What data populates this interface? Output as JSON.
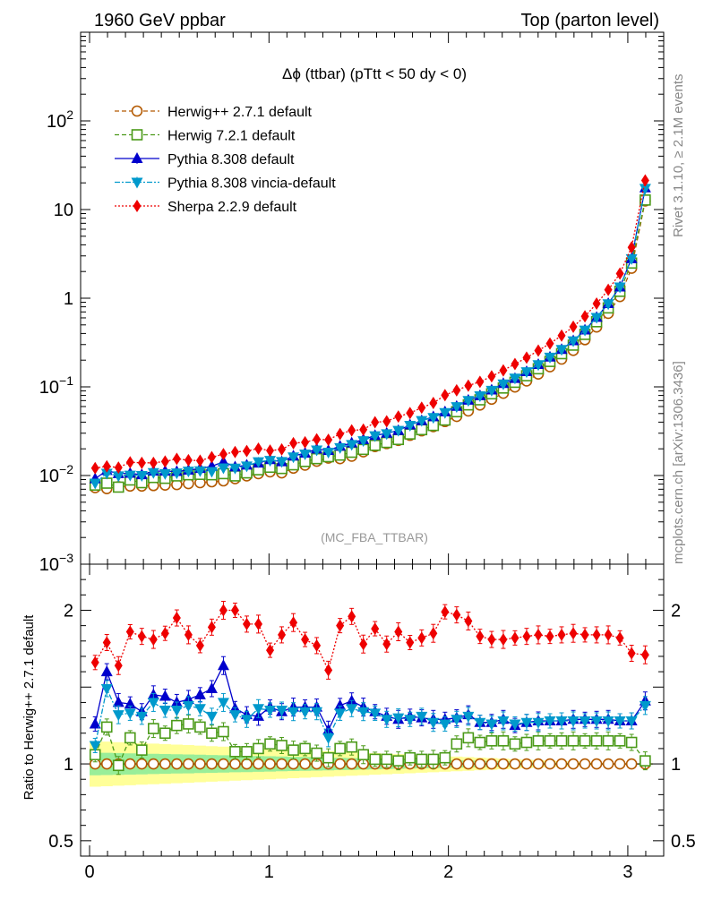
{
  "header": {
    "left": "1960 GeV ppbar",
    "right": "Top (parton level)"
  },
  "side_labels": {
    "top": "Rivet 3.1.10, ≥ 2.1M events",
    "bottom": "mcplots.cern.ch [arXiv:1306.3436]"
  },
  "chart_data": {
    "type": "line",
    "title": "Δϕ (ttbar) (pTtt < 50 dy < 0)",
    "watermark": "(MC_FBA_TTBAR)",
    "x": [
      0.031,
      0.096,
      0.161,
      0.226,
      0.291,
      0.356,
      0.421,
      0.486,
      0.551,
      0.616,
      0.681,
      0.746,
      0.811,
      0.876,
      0.941,
      1.006,
      1.071,
      1.136,
      1.201,
      1.266,
      1.331,
      1.396,
      1.461,
      1.526,
      1.591,
      1.656,
      1.721,
      1.786,
      1.851,
      1.916,
      1.981,
      2.046,
      2.111,
      2.176,
      2.241,
      2.306,
      2.371,
      2.436,
      2.501,
      2.566,
      2.631,
      2.696,
      2.761,
      2.826,
      2.891,
      2.956,
      3.021,
      3.097
    ],
    "xlim": [
      -0.05,
      3.2
    ],
    "main_panel": {
      "yscale": "log",
      "ylim": [
        0.001,
        1000
      ],
      "ytick_labels": [
        "10^-3",
        "10^-2",
        "10^-1",
        "1",
        "10",
        "10^2"
      ],
      "series": [
        {
          "name": "Herwig++ 2.7.1 default",
          "color": "#b35900",
          "marker": "circle-open",
          "dash": "5,3",
          "values": [
            0.0073,
            0.0071,
            0.0075,
            0.0076,
            0.0076,
            0.0077,
            0.0078,
            0.0079,
            0.0081,
            0.0083,
            0.0085,
            0.0087,
            0.0092,
            0.0099,
            0.0105,
            0.011,
            0.0107,
            0.0121,
            0.0131,
            0.0145,
            0.0157,
            0.0155,
            0.0165,
            0.0185,
            0.0212,
            0.0229,
            0.0249,
            0.0284,
            0.0319,
            0.0356,
            0.0406,
            0.0464,
            0.0535,
            0.0624,
            0.0725,
            0.0846,
            0.0995,
            0.1166,
            0.1395,
            0.1686,
            0.2057,
            0.2575,
            0.3402,
            0.4727,
            0.6748,
            1.0426,
            2.1786,
            12.5
          ]
        },
        {
          "name": "Herwig 7.2.1 default",
          "color": "#4b9a19",
          "marker": "square-open",
          "dash": "5,3",
          "values": [
            0.0078,
            0.0082,
            0.0074,
            0.0089,
            0.0083,
            0.0095,
            0.0093,
            0.0099,
            0.0102,
            0.0103,
            0.0102,
            0.0105,
            0.0099,
            0.0107,
            0.0116,
            0.0124,
            0.012,
            0.0132,
            0.0144,
            0.0155,
            0.0163,
            0.017,
            0.0183,
            0.0197,
            0.0219,
            0.0236,
            0.0255,
            0.0294,
            0.0329,
            0.0367,
            0.0422,
            0.0524,
            0.0626,
            0.0714,
            0.0835,
            0.097,
            0.1126,
            0.1335,
            0.1599,
            0.1935,
            0.2367,
            0.2954,
            0.3907,
            0.5424,
            0.7767,
            1.1963,
            2.4918,
            12.8
          ]
        },
        {
          "name": "Pythia 8.308 default",
          "color": "#0000cc",
          "marker": "triangle-up",
          "dash": "",
          "values": [
            0.0092,
            0.0114,
            0.0105,
            0.0106,
            0.0102,
            0.0112,
            0.0112,
            0.0111,
            0.0115,
            0.012,
            0.0127,
            0.0143,
            0.0125,
            0.0131,
            0.0138,
            0.0151,
            0.0143,
            0.0166,
            0.0179,
            0.0199,
            0.0192,
            0.0214,
            0.0233,
            0.0254,
            0.0283,
            0.03,
            0.0322,
            0.0372,
            0.0416,
            0.046,
            0.0523,
            0.0603,
            0.0708,
            0.0794,
            0.0922,
            0.109,
            0.1245,
            0.1486,
            0.1789,
            0.2164,
            0.2642,
            0.3309,
            0.4378,
            0.6083,
            0.8686,
            1.339,
            2.7931,
            17.6
          ]
        },
        {
          "name": "Pythia 8.308 vincia-default",
          "color": "#0099cc",
          "marker": "triangle-down",
          "dash": "6,2,2,2",
          "values": [
            0.0082,
            0.0106,
            0.0099,
            0.0101,
            0.01,
            0.0108,
            0.0105,
            0.0107,
            0.0112,
            0.0113,
            0.0111,
            0.0122,
            0.0121,
            0.0128,
            0.0143,
            0.0148,
            0.0144,
            0.0162,
            0.0175,
            0.0194,
            0.0183,
            0.0206,
            0.0224,
            0.0247,
            0.0281,
            0.0296,
            0.0323,
            0.0368,
            0.0417,
            0.0451,
            0.0513,
            0.0597,
            0.0701,
            0.0792,
            0.0914,
            0.1079,
            0.1256,
            0.1481,
            0.1778,
            0.2162,
            0.2641,
            0.3305,
            0.4364,
            0.6062,
            0.8656,
            1.3371,
            2.7941,
            17.3
          ]
        },
        {
          "name": "Sherpa 2.2.9 default",
          "color": "#ee0000",
          "marker": "diamond",
          "dash": "2,2",
          "values": [
            0.0121,
            0.0127,
            0.0123,
            0.0141,
            0.0139,
            0.0139,
            0.0144,
            0.0154,
            0.0149,
            0.0147,
            0.0161,
            0.0174,
            0.0184,
            0.0189,
            0.0201,
            0.0191,
            0.0197,
            0.0232,
            0.0237,
            0.0256,
            0.0253,
            0.0294,
            0.0323,
            0.0329,
            0.0399,
            0.0408,
            0.0463,
            0.0507,
            0.0582,
            0.0657,
            0.0806,
            0.0915,
            0.1032,
            0.1141,
            0.1313,
            0.1535,
            0.181,
            0.2133,
            0.2568,
            0.3083,
            0.3789,
            0.4762,
            0.6246,
            0.8686,
            1.2426,
            1.8975,
            3.7474,
            21.3
          ]
        }
      ]
    },
    "ratio_panel": {
      "ylabel": "Ratio to Herwig++ 2.7.1 default",
      "ylim": [
        0.4,
        2.3
      ],
      "ytick_labels": [
        "0.5",
        "1",
        "2"
      ],
      "series": [
        {
          "name": "Herwig 7.2.1 default",
          "values": [
            1.06,
            1.24,
            0.99,
            1.17,
            1.09,
            1.23,
            1.2,
            1.25,
            1.26,
            1.24,
            1.2,
            1.21,
            1.08,
            1.08,
            1.1,
            1.13,
            1.12,
            1.09,
            1.1,
            1.07,
            1.04,
            1.1,
            1.11,
            1.06,
            1.03,
            1.03,
            1.02,
            1.04,
            1.03,
            1.03,
            1.04,
            1.13,
            1.17,
            1.14,
            1.15,
            1.15,
            1.13,
            1.14,
            1.15,
            1.15,
            1.15,
            1.15,
            1.15,
            1.15,
            1.15,
            1.15,
            1.14,
            1.02
          ]
        },
        {
          "name": "Pythia 8.308 default",
          "values": [
            1.26,
            1.6,
            1.4,
            1.39,
            1.34,
            1.45,
            1.44,
            1.4,
            1.42,
            1.45,
            1.49,
            1.64,
            1.36,
            1.32,
            1.31,
            1.37,
            1.34,
            1.37,
            1.37,
            1.37,
            1.22,
            1.38,
            1.41,
            1.37,
            1.34,
            1.31,
            1.29,
            1.31,
            1.3,
            1.29,
            1.29,
            1.3,
            1.32,
            1.27,
            1.27,
            1.29,
            1.25,
            1.27,
            1.28,
            1.28,
            1.28,
            1.29,
            1.29,
            1.29,
            1.29,
            1.28,
            1.28,
            1.41
          ]
        },
        {
          "name": "Pythia 8.308 vincia-default",
          "values": [
            1.12,
            1.49,
            1.32,
            1.33,
            1.31,
            1.4,
            1.35,
            1.35,
            1.38,
            1.36,
            1.31,
            1.4,
            1.32,
            1.29,
            1.36,
            1.35,
            1.35,
            1.34,
            1.34,
            1.34,
            1.17,
            1.33,
            1.36,
            1.34,
            1.33,
            1.29,
            1.3,
            1.29,
            1.31,
            1.27,
            1.26,
            1.29,
            1.31,
            1.27,
            1.26,
            1.28,
            1.26,
            1.27,
            1.27,
            1.28,
            1.28,
            1.28,
            1.28,
            1.28,
            1.28,
            1.28,
            1.28,
            1.38
          ]
        },
        {
          "name": "Sherpa 2.2.9 default",
          "values": [
            1.66,
            1.79,
            1.64,
            1.86,
            1.83,
            1.81,
            1.85,
            1.95,
            1.84,
            1.77,
            1.89,
            2.0,
            2.0,
            1.91,
            1.91,
            1.74,
            1.84,
            1.92,
            1.81,
            1.77,
            1.61,
            1.9,
            1.96,
            1.78,
            1.88,
            1.78,
            1.86,
            1.79,
            1.82,
            1.85,
            1.99,
            1.97,
            1.93,
            1.83,
            1.81,
            1.81,
            1.82,
            1.83,
            1.84,
            1.83,
            1.84,
            1.85,
            1.84,
            1.84,
            1.84,
            1.82,
            1.72,
            1.71
          ]
        }
      ]
    },
    "xtick_labels": [
      "0",
      "1",
      "2",
      "3"
    ],
    "legend_position": "top-left"
  }
}
